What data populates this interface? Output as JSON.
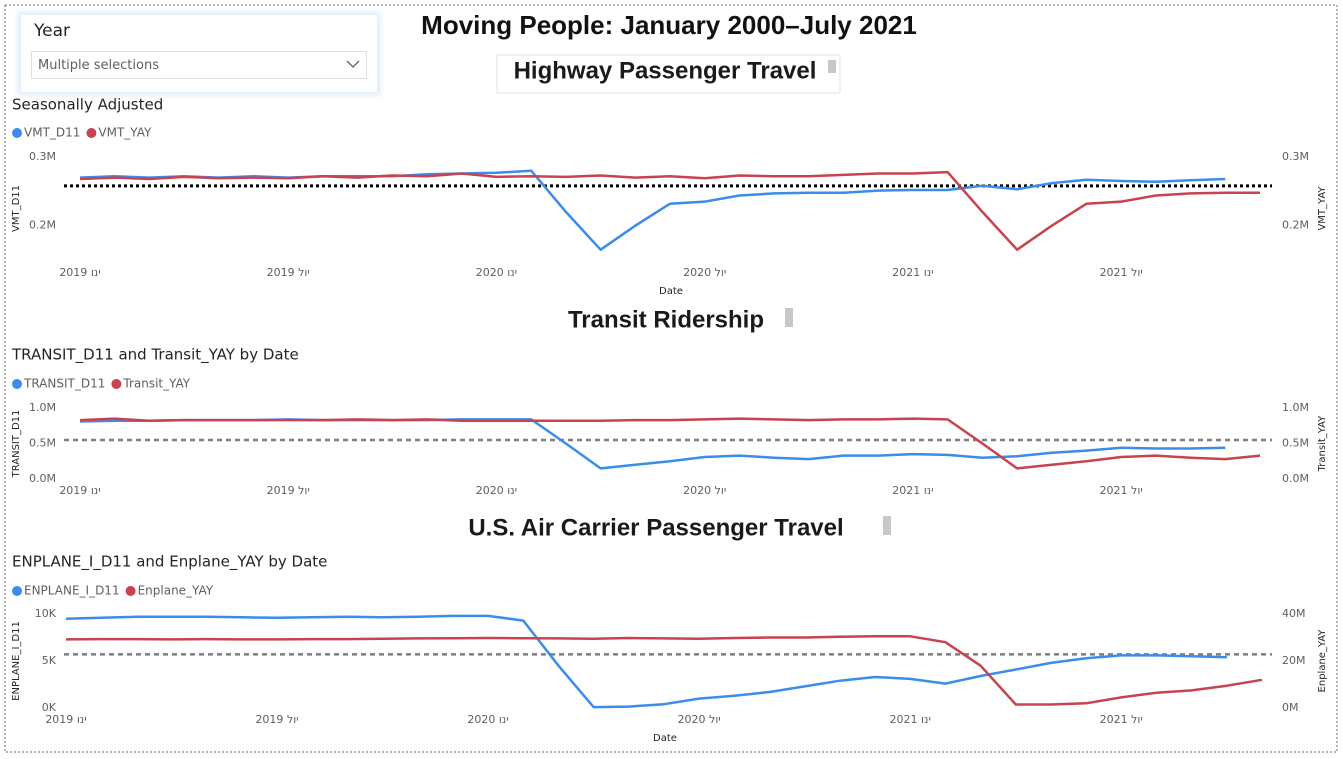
{
  "page_title": "Moving People: January 2000–July 2021",
  "slicer": {
    "title": "Year",
    "selection": "Multiple selections"
  },
  "chart_data": [
    {
      "type": "line",
      "section_title": "Highway Passenger Travel",
      "title": "Seasonally Adjusted",
      "x_label": "Date",
      "y_label": "VMT_D11",
      "y2_label": "VMT_YAY",
      "xlim": [
        "2019-01",
        "2021-11"
      ],
      "xticks": [
        {
          "value": "2019-01",
          "label": "2019 ינו"
        },
        {
          "value": "2019-07",
          "label": "2019 יול"
        },
        {
          "value": "2020-01",
          "label": "2020 ינו"
        },
        {
          "value": "2020-07",
          "label": "2020 יול"
        },
        {
          "value": "2021-01",
          "label": "2021 ינו"
        },
        {
          "value": "2021-07",
          "label": "2021 יול"
        }
      ],
      "ylim": [
        150000,
        300000
      ],
      "yticks": [
        {
          "value": 200000,
          "label": "0.2M"
        },
        {
          "value": 300000,
          "label": "0.3M"
        }
      ],
      "y2lim": [
        150000,
        300000
      ],
      "y2ticks": [
        {
          "value": 200000,
          "label": "0.2M"
        },
        {
          "value": 300000,
          "label": "0.3M"
        }
      ],
      "grid": false,
      "reference_line": {
        "value": 258000,
        "color": "#000000",
        "style": "dotted"
      },
      "x": [
        "2019-01",
        "2019-02",
        "2019-03",
        "2019-04",
        "2019-05",
        "2019-06",
        "2019-07",
        "2019-08",
        "2019-09",
        "2019-10",
        "2019-11",
        "2019-12",
        "2020-01",
        "2020-02",
        "2020-03",
        "2020-04",
        "2020-05",
        "2020-06",
        "2020-07",
        "2020-08",
        "2020-09",
        "2020-10",
        "2020-11",
        "2020-12",
        "2021-01",
        "2021-02",
        "2021-03",
        "2021-04",
        "2021-05",
        "2021-06",
        "2021-07",
        "2021-08",
        "2021-09",
        "2021-10",
        "2021-11"
      ],
      "series": [
        {
          "name": "VMT_D11",
          "color": "#3b8ceb",
          "axis": "y",
          "values": [
            270000,
            272000,
            270000,
            272000,
            270000,
            272000,
            270000,
            272000,
            272000,
            272000,
            275000,
            276000,
            277000,
            280000,
            220000,
            165000,
            200000,
            232000,
            235000,
            244000,
            247000,
            248000,
            248000,
            251000,
            252000,
            252000,
            258000,
            253000,
            262000,
            267000,
            265000,
            264000,
            266000,
            268000,
            null
          ]
        },
        {
          "name": "VMT_YAY",
          "color": "#c8424f",
          "axis": "y2",
          "values": [
            268000,
            270000,
            268000,
            271000,
            269000,
            270000,
            269000,
            272000,
            270000,
            273000,
            272000,
            276000,
            271000,
            272000,
            271000,
            273000,
            270000,
            272000,
            269000,
            273000,
            272000,
            272000,
            274000,
            276000,
            276000,
            278000,
            220000,
            165000,
            200000,
            232000,
            235000,
            244000,
            247000,
            248000,
            248000
          ]
        }
      ]
    },
    {
      "type": "line",
      "section_title": "Transit Ridership",
      "title": "TRANSIT_D11 and Transit_YAY by Date",
      "y_label": "TRANSIT_D11",
      "y2_label": "Transit_YAY",
      "xlim": [
        "2019-01",
        "2021-11"
      ],
      "xticks": [
        {
          "value": "2019-01",
          "label": "2019 ינו"
        },
        {
          "value": "2019-07",
          "label": "2019 יול"
        },
        {
          "value": "2020-01",
          "label": "2020 ינו"
        },
        {
          "value": "2020-07",
          "label": "2020 יול"
        },
        {
          "value": "2021-01",
          "label": "2021 ינו"
        },
        {
          "value": "2021-07",
          "label": "2021 יול"
        }
      ],
      "ylim": [
        0,
        1000000
      ],
      "yticks": [
        {
          "value": 0,
          "label": "0.0M"
        },
        {
          "value": 500000,
          "label": "0.5M"
        },
        {
          "value": 1000000,
          "label": "1.0M"
        }
      ],
      "y2lim": [
        0,
        1000000
      ],
      "y2ticks": [
        {
          "value": 0,
          "label": "0.0M"
        },
        {
          "value": 500000,
          "label": "0.5M"
        },
        {
          "value": 1000000,
          "label": "1.0M"
        }
      ],
      "grid": false,
      "reference_line": {
        "value": 550000,
        "color": "#7f7f7f",
        "style": "dashed"
      },
      "x": [
        "2019-01",
        "2019-02",
        "2019-03",
        "2019-04",
        "2019-05",
        "2019-06",
        "2019-07",
        "2019-08",
        "2019-09",
        "2019-10",
        "2019-11",
        "2019-12",
        "2020-01",
        "2020-02",
        "2020-03",
        "2020-04",
        "2020-05",
        "2020-06",
        "2020-07",
        "2020-08",
        "2020-09",
        "2020-10",
        "2020-11",
        "2020-12",
        "2021-01",
        "2021-02",
        "2021-03",
        "2021-04",
        "2021-05",
        "2021-06",
        "2021-07",
        "2021-08",
        "2021-09",
        "2021-10",
        "2021-11"
      ],
      "series": [
        {
          "name": "TRANSIT_D11",
          "color": "#3b8ceb",
          "axis": "y",
          "values": [
            810000,
            820000,
            820000,
            830000,
            830000,
            830000,
            840000,
            830000,
            830000,
            830000,
            830000,
            840000,
            840000,
            840000,
            500000,
            150000,
            200000,
            250000,
            310000,
            330000,
            300000,
            280000,
            330000,
            330000,
            350000,
            340000,
            300000,
            320000,
            370000,
            400000,
            440000,
            430000,
            430000,
            440000,
            null
          ]
        },
        {
          "name": "Transit_YAY",
          "color": "#c8424f",
          "axis": "y2",
          "values": [
            830000,
            850000,
            820000,
            830000,
            830000,
            830000,
            830000,
            830000,
            840000,
            830000,
            840000,
            820000,
            820000,
            820000,
            820000,
            820000,
            830000,
            830000,
            840000,
            850000,
            840000,
            830000,
            840000,
            840000,
            850000,
            840000,
            500000,
            150000,
            200000,
            250000,
            310000,
            330000,
            300000,
            280000,
            330000
          ]
        }
      ]
    },
    {
      "type": "line",
      "section_title": "U.S. Air Carrier Passenger Travel",
      "title": "ENPLANE_I_D11 and Enplane_YAY by Date",
      "x_label": "Date",
      "y_label": "ENPLANE_I_D11",
      "y2_label": "Enplane_YAY",
      "xlim": [
        "2019-01",
        "2021-11"
      ],
      "xticks": [
        {
          "value": "2019-01",
          "label": "2019 ינו"
        },
        {
          "value": "2019-07",
          "label": "2019 יול"
        },
        {
          "value": "2020-01",
          "label": "2020 ינו"
        },
        {
          "value": "2020-07",
          "label": "2020 יול"
        },
        {
          "value": "2021-01",
          "label": "2021 ינו"
        },
        {
          "value": "2021-07",
          "label": "2021 יול"
        }
      ],
      "ylim": [
        0,
        10000
      ],
      "yticks": [
        {
          "value": 0,
          "label": "0K"
        },
        {
          "value": 5000,
          "label": "5K"
        },
        {
          "value": 10000,
          "label": "10K"
        }
      ],
      "y2lim": [
        0,
        40000000
      ],
      "y2ticks": [
        {
          "value": 0,
          "label": "0M"
        },
        {
          "value": 20000000,
          "label": "20M"
        },
        {
          "value": 40000000,
          "label": "40M"
        }
      ],
      "grid": false,
      "reference_line": {
        "value": 5700,
        "color": "#7f7f7f",
        "style": "dashed"
      },
      "x": [
        "2019-01",
        "2019-02",
        "2019-03",
        "2019-04",
        "2019-05",
        "2019-06",
        "2019-07",
        "2019-08",
        "2019-09",
        "2019-10",
        "2019-11",
        "2019-12",
        "2020-01",
        "2020-02",
        "2020-03",
        "2020-04",
        "2020-05",
        "2020-06",
        "2020-07",
        "2020-08",
        "2020-09",
        "2020-10",
        "2020-11",
        "2020-12",
        "2021-01",
        "2021-02",
        "2021-03",
        "2021-04",
        "2021-05",
        "2021-06",
        "2021-07",
        "2021-08",
        "2021-09",
        "2021-10",
        "2021-11"
      ],
      "series": [
        {
          "name": "ENPLANE_I_D11",
          "color": "#3b8ceb",
          "axis": "y",
          "values": [
            9500,
            9600,
            9700,
            9700,
            9700,
            9650,
            9600,
            9650,
            9700,
            9650,
            9700,
            9800,
            9800,
            9300,
            4500,
            100,
            150,
            400,
            1000,
            1300,
            1700,
            2300,
            2900,
            3300,
            3100,
            2600,
            3400,
            4100,
            4800,
            5300,
            5600,
            5600,
            5500,
            5400,
            null
          ]
        },
        {
          "name": "Enplane_YAY",
          "color": "#c8424f",
          "axis": "y2",
          "values": [
            29200000,
            29300000,
            29300000,
            29200000,
            29300000,
            29200000,
            29200000,
            29300000,
            29300000,
            29500000,
            29600000,
            29700000,
            29800000,
            29700000,
            29600000,
            29500000,
            29800000,
            29600000,
            29500000,
            29800000,
            30000000,
            30000000,
            30300000,
            30500000,
            30500000,
            28000000,
            18000000,
            1500000,
            1500000,
            2000000,
            4500000,
            6500000,
            7500000,
            9500000,
            12000000
          ]
        }
      ]
    }
  ]
}
